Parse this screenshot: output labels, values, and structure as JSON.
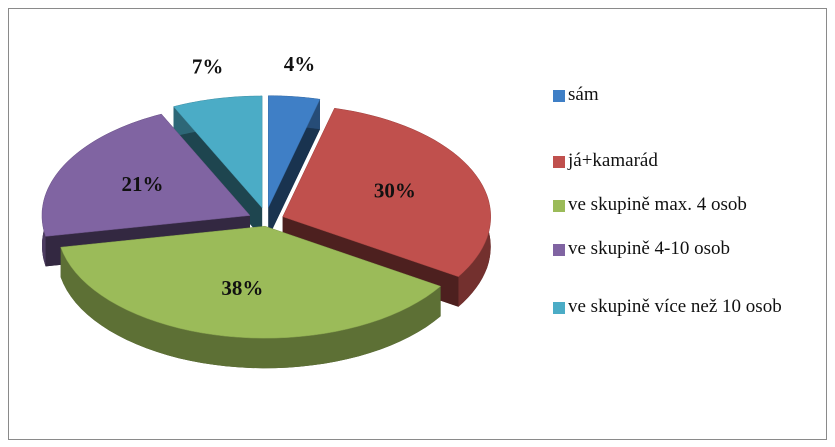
{
  "chart_data": {
    "type": "pie3d",
    "categories": [
      "sám",
      "já+kamarád",
      "ve skupině max. 4 osob",
      "ve skupině 4-10 osob",
      "ve skupině více než 10 osob"
    ],
    "values": [
      4,
      30,
      38,
      21,
      7
    ],
    "value_labels": [
      "4%",
      "30%",
      "38%",
      "21%",
      "7%"
    ],
    "colors": [
      "#3f7fc6",
      "#c0504d",
      "#9bbb59",
      "#8064a2",
      "#4bacc6"
    ],
    "legend": "right"
  }
}
